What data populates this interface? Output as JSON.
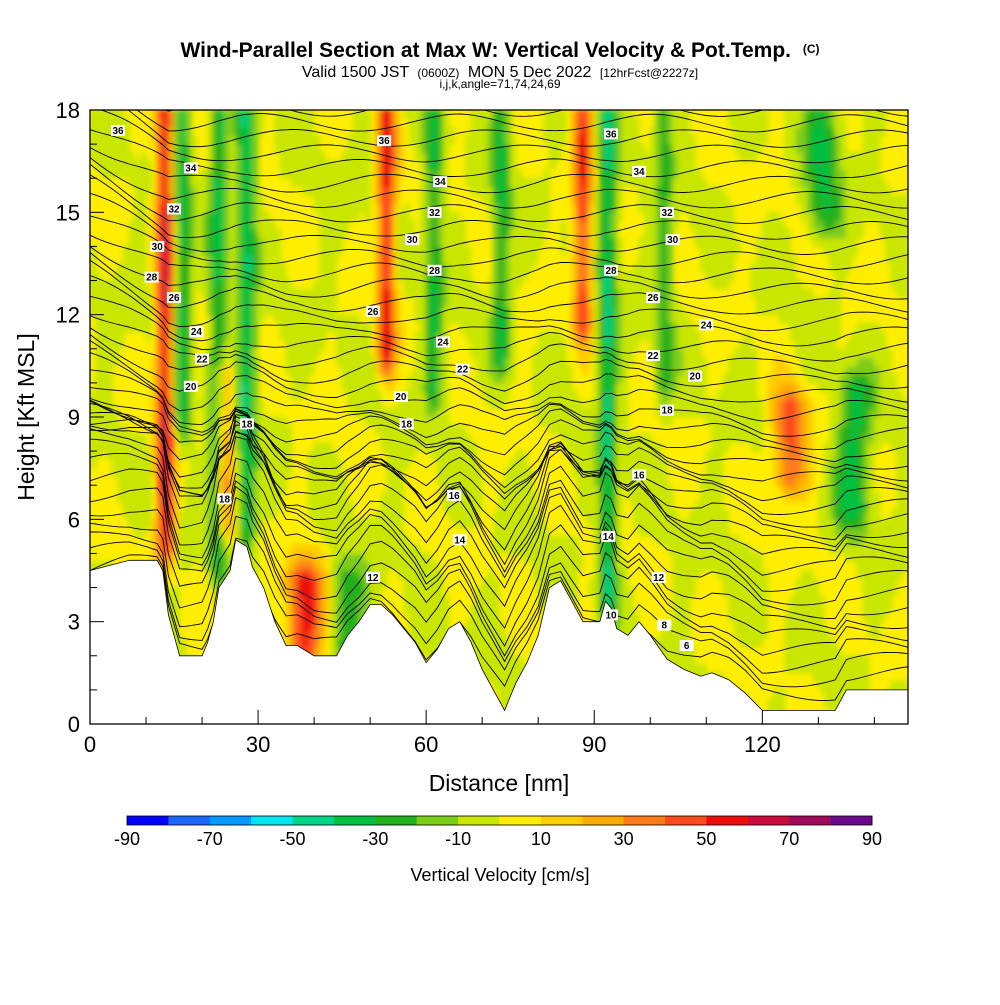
{
  "titles": {
    "main": "Wind-Parallel Section at Max W: Vertical Velocity & Pot.Temp.",
    "copyright": "(C)",
    "valid_prefix": "Valid 1500 JST",
    "valid_utc": "(0600Z)",
    "valid_date": "MON 5 Dec 2022",
    "forecast": "[12hrFcst@2227z]",
    "indices": "i,j,k,angle=71,74,24,69"
  },
  "colorbar": {
    "title": "Vertical Velocity [cm/s]",
    "tick_labels": [
      "-90",
      "-70",
      "-50",
      "-30",
      "-10",
      "10",
      "30",
      "50",
      "70",
      "90"
    ],
    "bins": [
      -90,
      -80,
      -70,
      -60,
      -50,
      -40,
      -30,
      -20,
      -10,
      0,
      10,
      20,
      30,
      40,
      50,
      60,
      70,
      80,
      90
    ],
    "colors": [
      "#0000ff",
      "#1a66ff",
      "#0099ff",
      "#00e5f0",
      "#00d488",
      "#00c040",
      "#22b01a",
      "#7ccc1a",
      "#c8e600",
      "#ffee00",
      "#ffcc00",
      "#ffaa00",
      "#ff7a1a",
      "#ff4a1a",
      "#ee0d0d",
      "#c80a3c",
      "#a00a5a",
      "#6b0a8c"
    ]
  },
  "chart_data": {
    "type": "heatmap",
    "xlabel": "Distance [nm]",
    "ylabel": "Height [Kft MSL]",
    "xlim": [
      0,
      146
    ],
    "ylim": [
      0,
      18
    ],
    "xticks": [
      0,
      30,
      60,
      90,
      120
    ],
    "yticks": [
      0,
      3,
      6,
      9,
      12,
      15,
      18
    ],
    "field": "vertical velocity (cm/s), shaded",
    "contour_field": "potential temperature, contoured every 2",
    "terrain_kft": [
      [
        0,
        4.5
      ],
      [
        7,
        4.8
      ],
      [
        12,
        4.8
      ],
      [
        13,
        4.5
      ],
      [
        14,
        3.2
      ],
      [
        15,
        2.6
      ],
      [
        16,
        2.0
      ],
      [
        20,
        2.0
      ],
      [
        21,
        2.4
      ],
      [
        22,
        3.0
      ],
      [
        23,
        4.0
      ],
      [
        25,
        4.5
      ],
      [
        26,
        5.4
      ],
      [
        28,
        5.2
      ],
      [
        29,
        4.6
      ],
      [
        31,
        4.0
      ],
      [
        33,
        3.0
      ],
      [
        35,
        2.3
      ],
      [
        37,
        2.3
      ],
      [
        39,
        2.1
      ],
      [
        40,
        2.0
      ],
      [
        44,
        2.0
      ],
      [
        46,
        2.6
      ],
      [
        48,
        3.0
      ],
      [
        50,
        3.5
      ],
      [
        52,
        3.5
      ],
      [
        54,
        3.2
      ],
      [
        56,
        2.8
      ],
      [
        58,
        2.4
      ],
      [
        60,
        1.8
      ],
      [
        62,
        2.2
      ],
      [
        64,
        2.8
      ],
      [
        66,
        3.0
      ],
      [
        68,
        2.4
      ],
      [
        70,
        1.6
      ],
      [
        72,
        1.0
      ],
      [
        74,
        0.4
      ],
      [
        76,
        1.2
      ],
      [
        78,
        1.8
      ],
      [
        80,
        2.6
      ],
      [
        82,
        4.0
      ],
      [
        84,
        4.2
      ],
      [
        86,
        3.6
      ],
      [
        88,
        3.0
      ],
      [
        91,
        3.0
      ],
      [
        92,
        3.6
      ],
      [
        93,
        3.4
      ],
      [
        94,
        2.8
      ],
      [
        96,
        2.6
      ],
      [
        98,
        3.0
      ],
      [
        100,
        2.6
      ],
      [
        103,
        1.9
      ],
      [
        106,
        1.6
      ],
      [
        109,
        1.4
      ],
      [
        111,
        1.5
      ],
      [
        114,
        1.3
      ],
      [
        117,
        0.9
      ],
      [
        120,
        0.4
      ],
      [
        125,
        0.4
      ],
      [
        130,
        0.4
      ],
      [
        133,
        0.4
      ],
      [
        135,
        1.0
      ],
      [
        140,
        1.0
      ],
      [
        146,
        1.0
      ]
    ],
    "updraft_cores": [
      {
        "x": 13.5,
        "y_range": [
          5.5,
          18
        ],
        "w_max": 60
      },
      {
        "x": 24,
        "y_range": [
          6,
          10
        ],
        "w_max": 40
      },
      {
        "x": 38.5,
        "y_range": [
          2.5,
          4.0
        ],
        "w_max": 60
      },
      {
        "x": 53,
        "y_range": [
          11,
          18
        ],
        "w_max": 55
      },
      {
        "x": 88,
        "y_range": [
          12,
          18
        ],
        "w_max": 50
      },
      {
        "x": 125,
        "y_range": [
          7.5,
          9.0
        ],
        "w_max": 45
      }
    ],
    "downdraft_cores": [
      {
        "x": 16.5,
        "y_range": [
          9,
          18
        ],
        "w_min": -35
      },
      {
        "x": 23,
        "y_range": [
          5,
          18
        ],
        "w_min": -35
      },
      {
        "x": 28,
        "y_range": [
          6,
          18
        ],
        "w_min": -40
      },
      {
        "x": 46,
        "y_range": [
          2.5,
          4.0
        ],
        "w_min": -30
      },
      {
        "x": 61.5,
        "y_range": [
          10,
          18
        ],
        "w_min": -30
      },
      {
        "x": 73.5,
        "y_range": [
          11,
          18
        ],
        "w_min": -30
      },
      {
        "x": 92.5,
        "y_range": [
          4,
          18
        ],
        "w_min": -40
      },
      {
        "x": 102.5,
        "y_range": [
          10,
          18
        ],
        "w_min": -25
      },
      {
        "x": 136.5,
        "y_range": [
          6.5,
          9.5
        ],
        "w_min": -35
      },
      {
        "x": 131,
        "y_range": [
          15,
          18
        ],
        "w_min": -30
      }
    ],
    "contour_labels": [
      {
        "text": "36",
        "x": 5,
        "y": 17.4
      },
      {
        "text": "34",
        "x": 18,
        "y": 16.3
      },
      {
        "text": "32",
        "x": 15,
        "y": 15.1
      },
      {
        "text": "30",
        "x": 12,
        "y": 14.0
      },
      {
        "text": "28",
        "x": 11,
        "y": 13.1
      },
      {
        "text": "26",
        "x": 15,
        "y": 12.5
      },
      {
        "text": "24",
        "x": 19,
        "y": 11.5
      },
      {
        "text": "22",
        "x": 20,
        "y": 10.7
      },
      {
        "text": "20",
        "x": 18,
        "y": 9.9
      },
      {
        "text": "18",
        "x": 28,
        "y": 8.8
      },
      {
        "text": "18",
        "x": 24,
        "y": 6.6
      },
      {
        "text": "36",
        "x": 52.5,
        "y": 17.1
      },
      {
        "text": "34",
        "x": 62.5,
        "y": 15.9
      },
      {
        "text": "32",
        "x": 61.5,
        "y": 15.0
      },
      {
        "text": "30",
        "x": 57.5,
        "y": 14.2
      },
      {
        "text": "28",
        "x": 61.5,
        "y": 13.3
      },
      {
        "text": "26",
        "x": 50.5,
        "y": 12.1
      },
      {
        "text": "24",
        "x": 63,
        "y": 11.2
      },
      {
        "text": "22",
        "x": 66.5,
        "y": 10.4
      },
      {
        "text": "20",
        "x": 55.5,
        "y": 9.6
      },
      {
        "text": "18",
        "x": 56.5,
        "y": 8.8
      },
      {
        "text": "16",
        "x": 65,
        "y": 6.7
      },
      {
        "text": "14",
        "x": 66,
        "y": 5.4
      },
      {
        "text": "12",
        "x": 50.5,
        "y": 4.3
      },
      {
        "text": "36",
        "x": 93,
        "y": 17.3
      },
      {
        "text": "34",
        "x": 98,
        "y": 16.2
      },
      {
        "text": "32",
        "x": 103,
        "y": 15.0
      },
      {
        "text": "30",
        "x": 104,
        "y": 14.2
      },
      {
        "text": "28",
        "x": 93,
        "y": 13.3
      },
      {
        "text": "26",
        "x": 100.5,
        "y": 12.5
      },
      {
        "text": "24",
        "x": 110,
        "y": 11.7
      },
      {
        "text": "22",
        "x": 100.5,
        "y": 10.8
      },
      {
        "text": "20",
        "x": 108,
        "y": 10.2
      },
      {
        "text": "18",
        "x": 103,
        "y": 9.2
      },
      {
        "text": "16",
        "x": 98,
        "y": 7.3
      },
      {
        "text": "14",
        "x": 92.5,
        "y": 5.5
      },
      {
        "text": "12",
        "x": 101.5,
        "y": 4.3
      },
      {
        "text": "10",
        "x": 93,
        "y": 3.2
      },
      {
        "text": "8",
        "x": 102.5,
        "y": 2.9
      },
      {
        "text": "6",
        "x": 106.5,
        "y": 2.3
      }
    ]
  }
}
